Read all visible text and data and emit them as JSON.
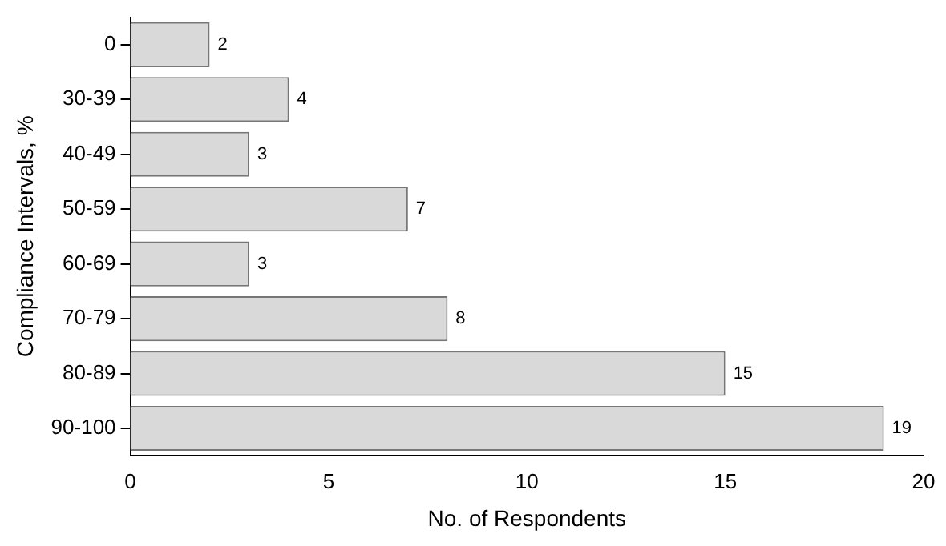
{
  "chart_data": {
    "type": "bar",
    "orientation": "horizontal",
    "xlabel": "No. of Respondents",
    "ylabel": "Compliance Intervals, %",
    "categories": [
      "0",
      "30-39",
      "40-49",
      "50-59",
      "60-69",
      "70-79",
      "80-89",
      "90-100"
    ],
    "values": [
      2,
      4,
      3,
      7,
      3,
      8,
      15,
      19
    ],
    "color": "#d9d9d9",
    "xlim": [
      0,
      20
    ],
    "xticks": [
      0,
      5,
      10,
      15,
      20
    ],
    "grid": false,
    "data_labels": true
  }
}
